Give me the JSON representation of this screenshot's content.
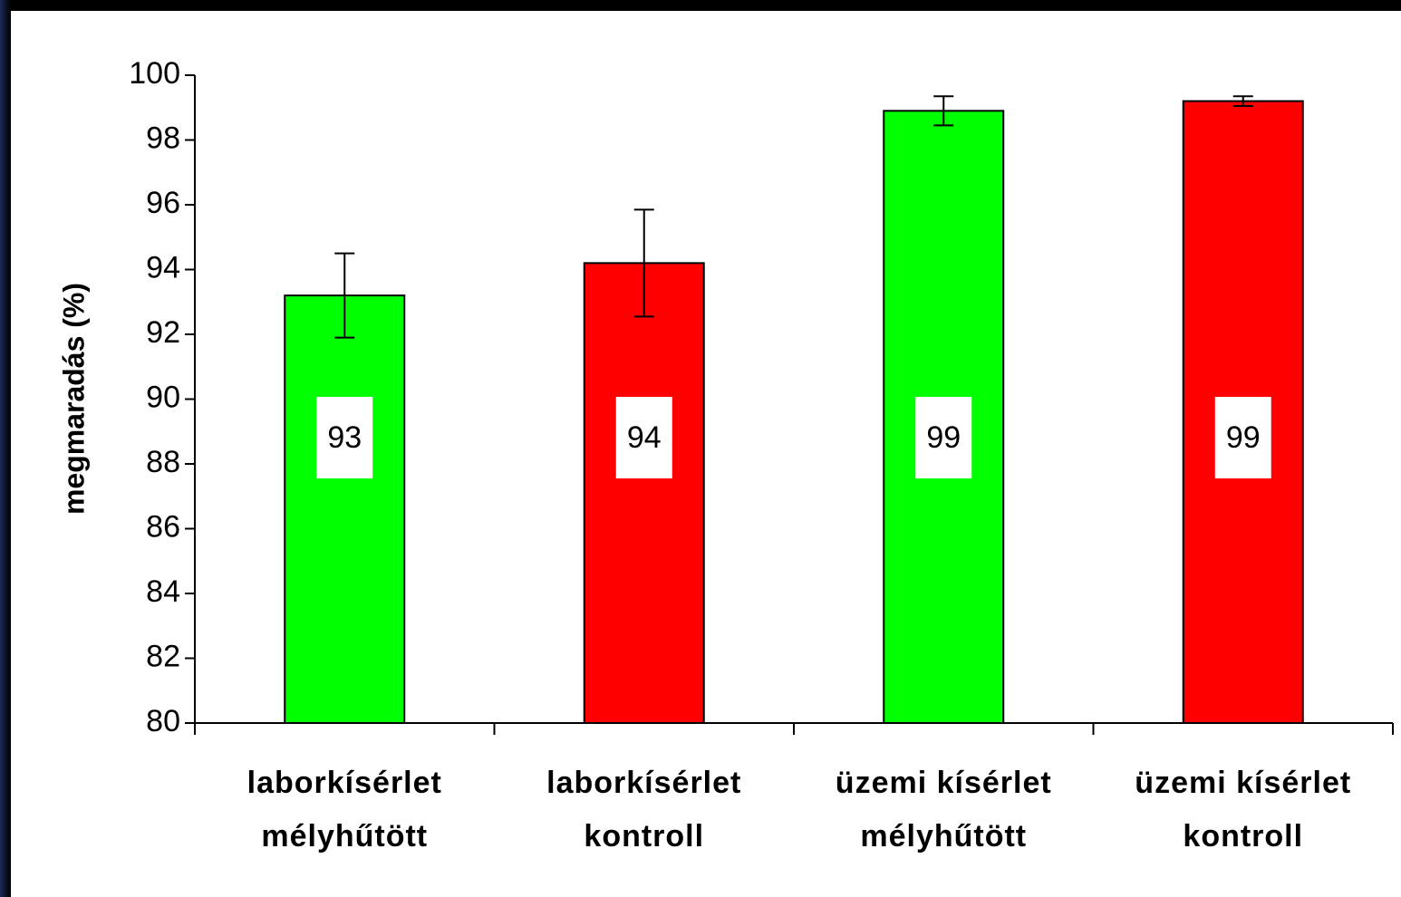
{
  "chart_data": {
    "type": "bar",
    "y_label": "megmaradás (%)",
    "categories": [
      [
        "laborkísérlet",
        "mélyhűtött"
      ],
      [
        "laborkísérlet",
        "kontroll"
      ],
      [
        "üzemi kísérlet",
        "mélyhűtött"
      ],
      [
        "üzemi kísérlet",
        "kontroll"
      ]
    ],
    "values": [
      93.2,
      94.2,
      98.9,
      99.2
    ],
    "value_labels": [
      "93",
      "94",
      "99",
      "99"
    ],
    "errors": [
      1.3,
      1.65,
      0.45,
      0.15
    ],
    "colors": [
      "#00ff00",
      "#ff0000",
      "#00ff00",
      "#ff0000"
    ],
    "ylim": [
      80,
      100
    ],
    "yticks": [
      80,
      82,
      84,
      86,
      88,
      90,
      92,
      94,
      96,
      98,
      100
    ],
    "grid": false
  }
}
